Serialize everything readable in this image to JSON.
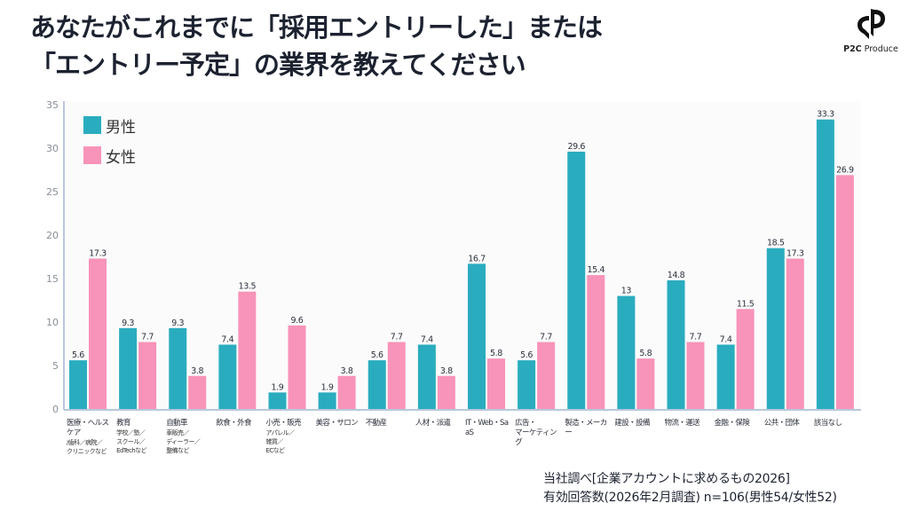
{
  "title": {
    "line1": "あなたがこれまでに「採用エントリーした」または",
    "line2": "「エントリー予定」の業界を教えてください"
  },
  "logo": {
    "icon": "p2c-logo-icon",
    "brand_bold": "P2C",
    "brand_rest": " Produce"
  },
  "colors": {
    "male": "#2aacbf",
    "female": "#f893b9",
    "axis": "#b7c8dc",
    "plot_bg": "#fbfbfc"
  },
  "source": {
    "line1": "当社調べ[企業アカウントに求めるもの2026]",
    "line2": "有効回答数(2026年2月調査) n=106(男性54/女性52)"
  },
  "chart_data": {
    "type": "bar",
    "title": "あなたがこれまでに「採用エントリーした」または「エントリー予定」の業界を教えてください",
    "xlabel": "",
    "ylabel": "",
    "ylim": [
      0,
      35
    ],
    "yticks": [
      0,
      5,
      10,
      15,
      20,
      25,
      30,
      35
    ],
    "grid": false,
    "legend_position": "top-left",
    "categories": [
      {
        "label": "医療・ヘルスケア",
        "sub": [
          "/歯科／病院／",
          "クリニックなど"
        ]
      },
      {
        "label": "教育",
        "sub": [
          "学校／塾／",
          "スクール／",
          "EdTechなど"
        ]
      },
      {
        "label": "自動車",
        "sub": [
          "車販売／",
          "ディーラー／",
          "整備など"
        ]
      },
      {
        "label": "飲食・外食",
        "sub": []
      },
      {
        "label": "小売・販売",
        "sub": [
          "アパレル／",
          "雑貨／",
          "ECなど"
        ]
      },
      {
        "label": "美容・サロン",
        "sub": []
      },
      {
        "label": "不動産",
        "sub": []
      },
      {
        "label": "人材・派遣",
        "sub": []
      },
      {
        "label": "IT・Web・SaaS",
        "sub": []
      },
      {
        "label": "広告・",
        "sub": [
          "マーケティング"
        ]
      },
      {
        "label": "製造・メーカー",
        "sub": []
      },
      {
        "label": "建設・設備",
        "sub": []
      },
      {
        "label": "物流・運送",
        "sub": []
      },
      {
        "label": "金融・保険",
        "sub": []
      },
      {
        "label": "公共・団体",
        "sub": []
      },
      {
        "label": "該当なし",
        "sub": []
      }
    ],
    "series": [
      {
        "name": "男性",
        "values": [
          5.6,
          9.3,
          9.3,
          7.4,
          1.9,
          1.9,
          5.6,
          7.4,
          16.7,
          5.6,
          29.6,
          13,
          14.8,
          7.4,
          18.5,
          33.3
        ]
      },
      {
        "name": "女性",
        "values": [
          17.3,
          7.7,
          3.8,
          13.5,
          9.6,
          3.8,
          7.7,
          3.8,
          5.8,
          7.7,
          15.4,
          5.8,
          7.7,
          11.5,
          17.3,
          26.9
        ]
      }
    ]
  }
}
